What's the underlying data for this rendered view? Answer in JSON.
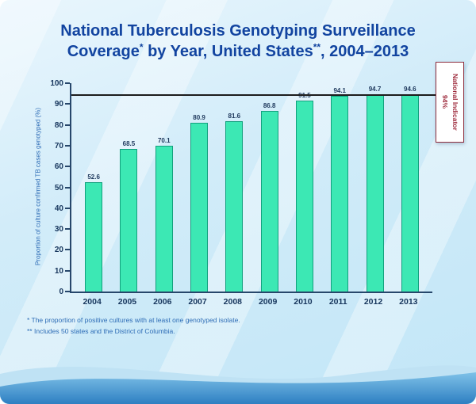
{
  "slide": {
    "title_line1": "National Tuberculosis Genotyping Surveillance",
    "title_line2": {
      "pre": "Coverage",
      "sup1": "*",
      "mid": " by Year, United States",
      "sup2": "**",
      "post": ", 2004–2013"
    },
    "footnotes": [
      "* The proportion of positive cultures with at least one genotyped isolate.",
      "** Includes 50 states and the District of Columbia."
    ]
  },
  "chart_data": {
    "type": "bar",
    "title": "National Tuberculosis Genotyping Surveillance Coverage by Year, United States, 2004–2013",
    "categories": [
      "2004",
      "2005",
      "2006",
      "2007",
      "2008",
      "2009",
      "2010",
      "2011",
      "2012",
      "2013"
    ],
    "values": [
      52.6,
      68.5,
      70.1,
      80.9,
      81.6,
      86.8,
      91.5,
      94.1,
      94.7,
      94.6
    ],
    "xlabel": "",
    "ylabel": "Proportion of culture confirmed TB cases genotyped  (%)",
    "ylim": [
      0,
      100
    ],
    "ytick_step": 10,
    "grid": false,
    "legend": false,
    "indicator": {
      "value": 94,
      "label": "National Indicator",
      "value_label": "94%"
    }
  },
  "colors": {
    "bar_fill": "#3ce8b4",
    "bar_border": "#12a07d",
    "title_text": "#1244a0",
    "axis_text": "#17365d",
    "footnote_text": "#2e6db6",
    "indicator_text": "#9e2b3d",
    "indicator_border": "#8e2d3e"
  }
}
